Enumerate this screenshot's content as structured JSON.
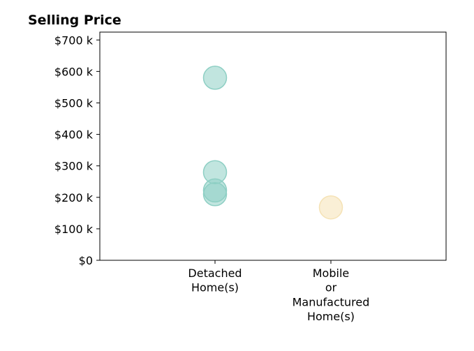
{
  "chart_data": {
    "type": "scatter",
    "title": "Selling Price",
    "xlabel": "",
    "ylabel": "",
    "categories": [
      [
        "Detached",
        "Home(s)"
      ],
      [
        "Mobile",
        "or",
        "Manufactured",
        "Home(s)"
      ]
    ],
    "ylim": [
      0,
      725000
    ],
    "yticks": [
      0,
      100000,
      200000,
      300000,
      400000,
      500000,
      600000,
      700000
    ],
    "ytick_labels": [
      "$0",
      "$100 k",
      "$200 k",
      "$300 k",
      "$400 k",
      "$500 k",
      "$600 k",
      "$700 k"
    ],
    "grid": false,
    "series": [
      {
        "category_index": 0,
        "color": "#8ecfc4",
        "values": [
          580000,
          280000,
          222000,
          210000
        ]
      },
      {
        "category_index": 1,
        "color": "#f5e2b5",
        "values": [
          168000
        ]
      }
    ]
  }
}
